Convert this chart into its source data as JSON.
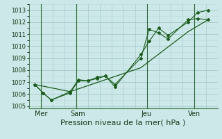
{
  "background_color": "#cce8e8",
  "grid_color_major": "#aacccc",
  "grid_color_minor": "#bdd8d8",
  "line_color": "#1a5c1a",
  "vline_color": "#2a6a2a",
  "title": "Pression niveau de la mer( hPa )",
  "ylim": [
    1004.8,
    1013.5
  ],
  "yticks": [
    1005,
    1006,
    1007,
    1008,
    1009,
    1010,
    1011,
    1012,
    1013
  ],
  "day_labels": [
    "Mer",
    "Sam",
    "Jeu",
    "Ven"
  ],
  "day_positions": [
    0.5,
    3.5,
    9.5,
    13.5
  ],
  "vline_positions": [
    1,
    4,
    10,
    14
  ],
  "xlim": [
    0,
    16
  ],
  "line1_x": [
    0.5,
    1.2,
    1.9,
    3.5,
    4.2,
    5.0,
    5.8,
    6.5,
    7.3,
    9.5,
    10.2,
    11.0,
    11.8,
    13.5,
    14.3,
    15.2
  ],
  "line1_y": [
    1006.8,
    1006.1,
    1005.5,
    1006.1,
    1007.1,
    1007.1,
    1007.3,
    1007.5,
    1006.8,
    1009.0,
    1011.4,
    1011.1,
    1010.6,
    1012.2,
    1012.3,
    1012.2
  ],
  "line2_x": [
    0.5,
    1.2,
    1.9,
    3.5,
    4.2,
    5.0,
    5.8,
    6.5,
    7.3,
    9.5,
    10.2,
    11.0,
    11.8,
    13.5,
    14.3,
    15.2
  ],
  "line2_y": [
    1006.8,
    1006.1,
    1005.5,
    1006.2,
    1007.2,
    1007.1,
    1007.4,
    1007.5,
    1006.6,
    1009.3,
    1010.4,
    1011.5,
    1010.9,
    1012.0,
    1012.8,
    1013.0
  ],
  "line3_x": [
    0.5,
    3.5,
    9.5,
    13.5,
    15.2
  ],
  "line3_y": [
    1006.8,
    1006.2,
    1008.2,
    1011.2,
    1012.2
  ],
  "tick_fontsize": 6,
  "xlabel_fontsize": 8,
  "day_label_fontsize": 7
}
